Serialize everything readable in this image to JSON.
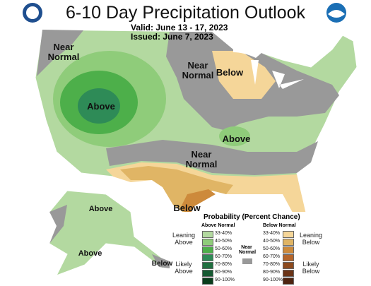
{
  "header": {
    "title": "6-10 Day Precipitation Outlook",
    "valid_label": "Valid:",
    "valid": "June 13 - 17, 2023",
    "issued_label": "Issued:",
    "issued": "June 7, 2023"
  },
  "map_labels": [
    "Near Normal",
    "Near Normal",
    "Below",
    "Above",
    "Above",
    "Near Normal",
    "Below",
    "Above",
    "Above",
    "Below"
  ],
  "legend": {
    "title": "Probability (Percent Chance)",
    "above_header": "Above Normal",
    "below_header": "Below Normal",
    "near_normal": "Near Normal",
    "above_groups": [
      "Leaning Above",
      "Likely Above"
    ],
    "below_groups": [
      "Leaning Below",
      "Likely Below"
    ],
    "above_ranges": [
      "33-40%",
      "40-50%",
      "50-60%",
      "60-70%",
      "70-80%",
      "80-90%",
      "90-100%"
    ],
    "below_ranges": [
      "33-40%",
      "40-50%",
      "50-60%",
      "60-70%",
      "70-80%",
      "80-90%",
      "90-100%"
    ]
  }
}
